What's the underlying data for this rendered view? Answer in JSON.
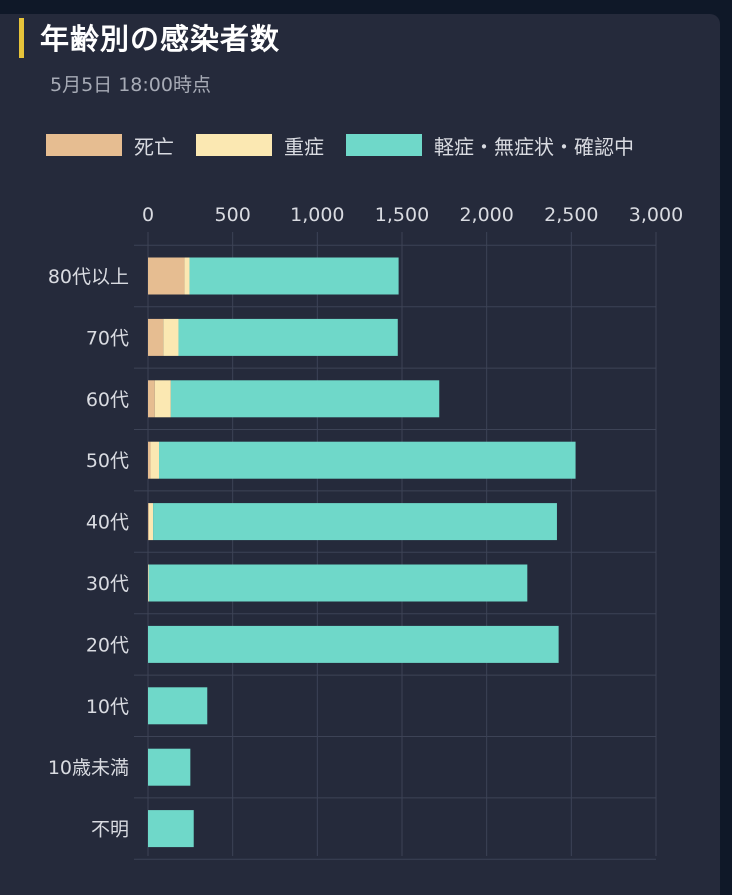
{
  "header": {
    "title": "年齢別の感染者数",
    "subtitle": "5月5日 18:00時点"
  },
  "colors": {
    "accent": "#e6c33a",
    "death": "#e6bd91",
    "severe": "#fbe8b2",
    "mild": "#6fd8c9",
    "grid": "#3d4356",
    "background": "#252a3b"
  },
  "legend": [
    {
      "label": "死亡",
      "color": "#e6bd91"
    },
    {
      "label": "重症",
      "color": "#fbe8b2"
    },
    {
      "label": "軽症・無症状・確認中",
      "color": "#6fd8c9"
    }
  ],
  "chart_data": {
    "type": "bar",
    "orientation": "horizontal",
    "stacked": true,
    "title": "年齢別の感染者数",
    "subtitle": "5月5日 18:00時点",
    "xlim": [
      0,
      3000
    ],
    "x_ticks": [
      "0",
      "500",
      "1,000",
      "1,500",
      "2,000",
      "2,500",
      "3,000"
    ],
    "x_tick_values": [
      0,
      500,
      1000,
      1500,
      2000,
      2500,
      3000
    ],
    "legend_position": "top",
    "grid": true,
    "categories": [
      "80代以上",
      "70代",
      "60代",
      "50代",
      "40代",
      "30代",
      "20代",
      "10代",
      "10歳未満",
      "不明"
    ],
    "series": [
      {
        "name": "死亡",
        "values": [
          215,
          90,
          40,
          15,
          5,
          0,
          0,
          0,
          0,
          0
        ]
      },
      {
        "name": "重症",
        "values": [
          30,
          90,
          95,
          50,
          25,
          5,
          0,
          0,
          0,
          0
        ]
      },
      {
        "name": "軽症・無症状・確認中",
        "values": [
          1235,
          1295,
          1585,
          2460,
          2385,
          2235,
          2425,
          350,
          250,
          270
        ]
      }
    ]
  }
}
